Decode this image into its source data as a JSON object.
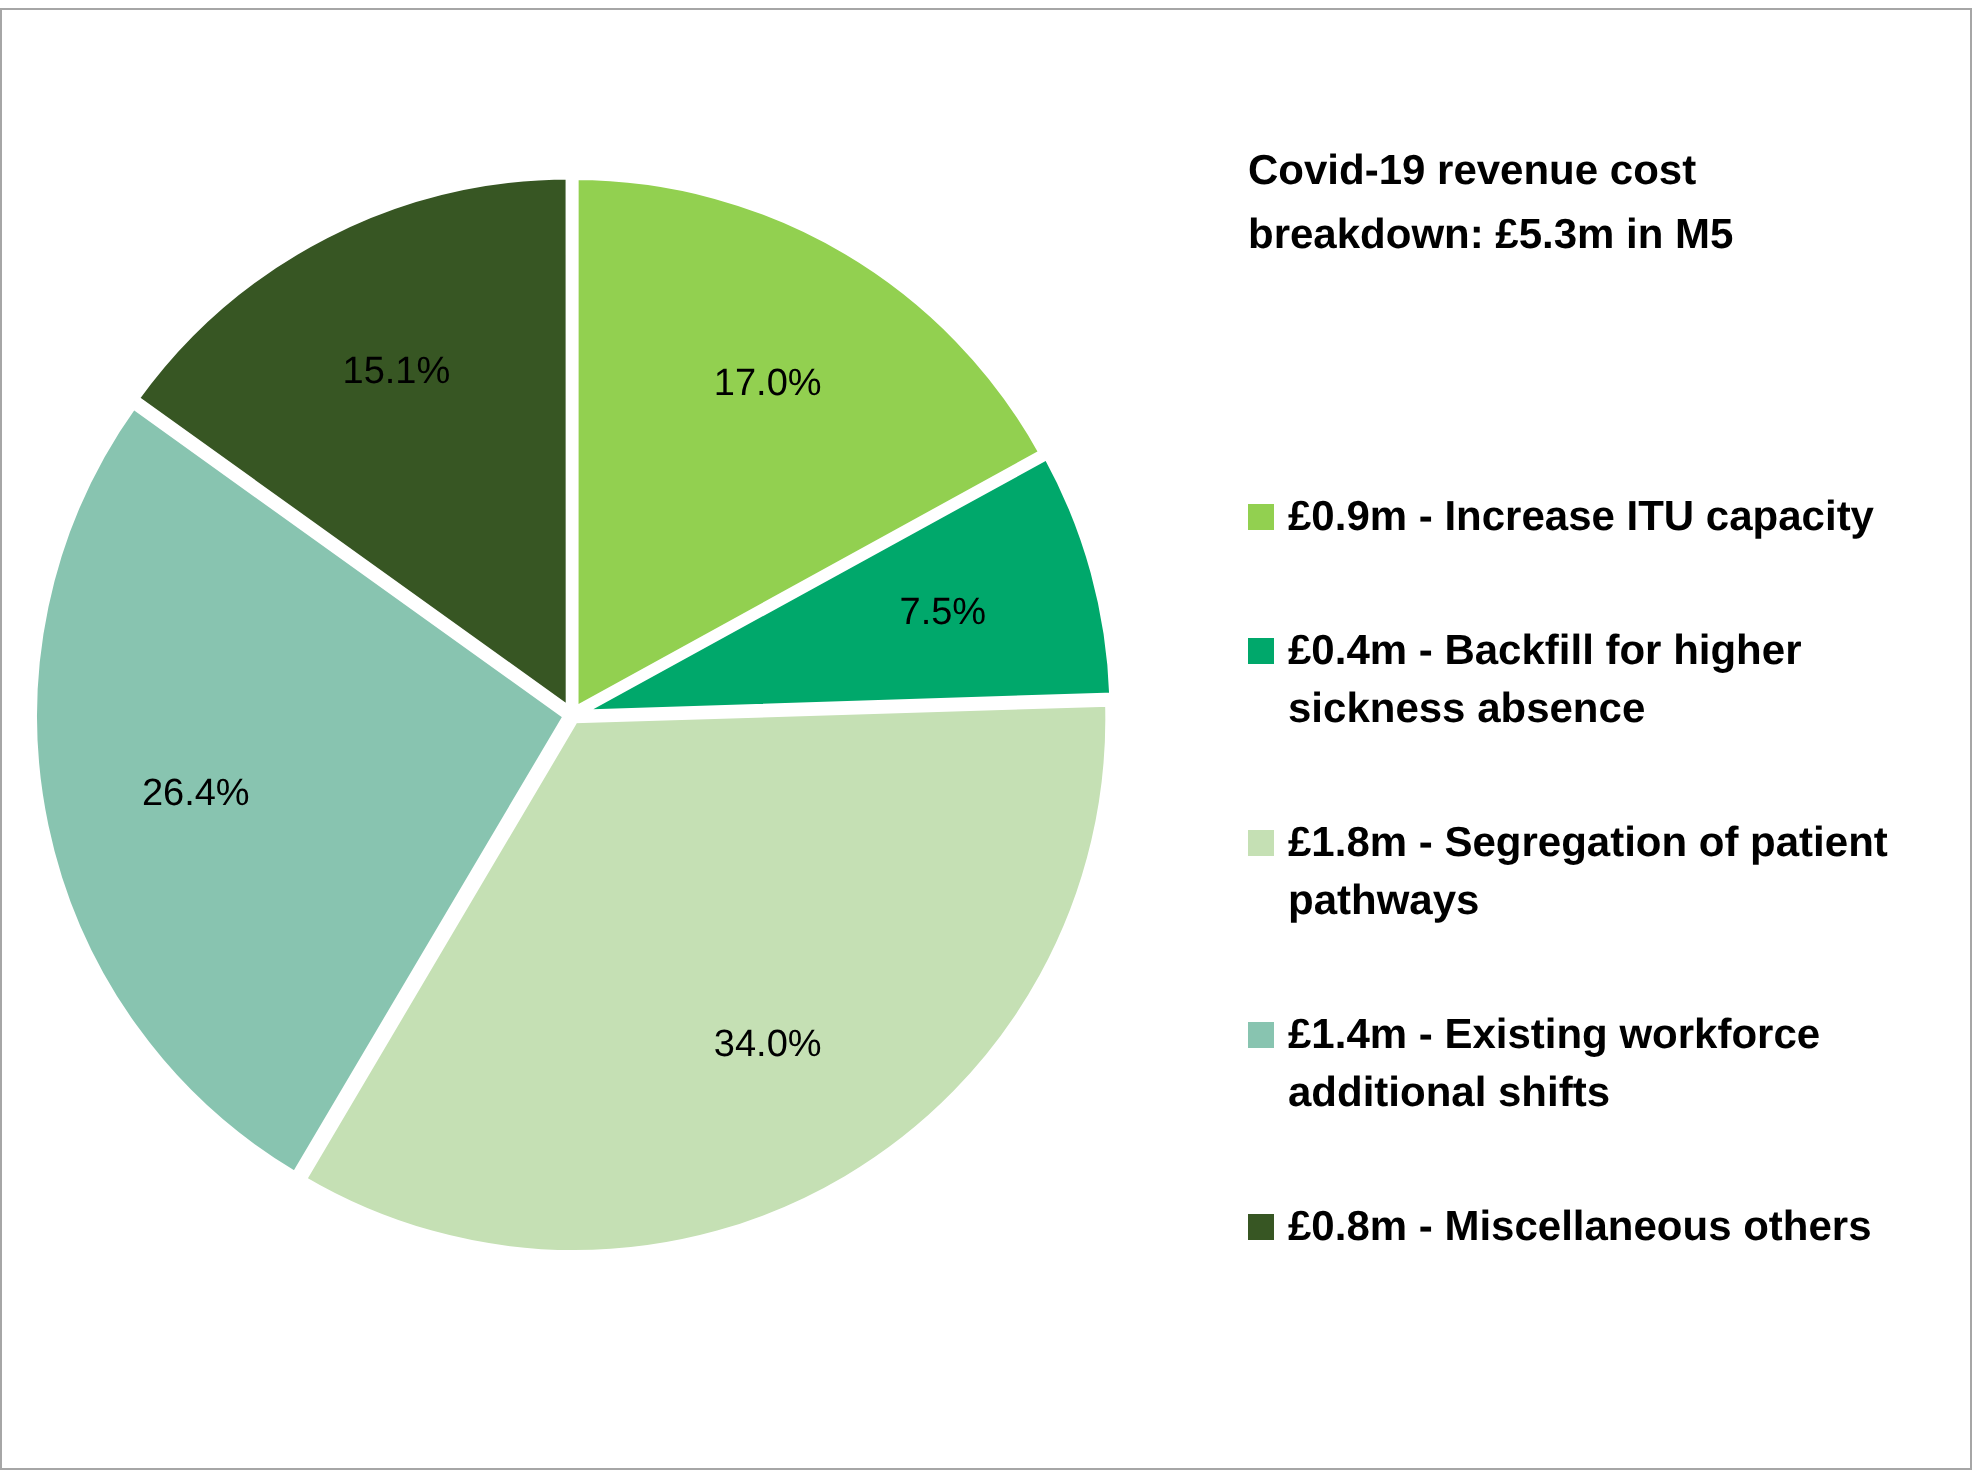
{
  "chart_data": {
    "type": "pie",
    "title": "Covid-19 revenue cost breakdown: £5.3m in M5",
    "categories": [
      "£0.9m - Increase ITU capacity",
      "£0.4m - Backfill for higher sickness absence",
      "£1.8m - Segregation of patient pathways",
      "£1.4m - Existing workforce additional shifts",
      "£0.8m - Miscellaneous others"
    ],
    "values": [
      17.0,
      7.5,
      34.0,
      26.4,
      15.1
    ],
    "value_labels": [
      "17.0%",
      "7.5%",
      "34.0%",
      "26.4%",
      "15.1%"
    ],
    "colors": [
      "#92d050",
      "#00a86b",
      "#c5e0b4",
      "#88c4b0",
      "#375623"
    ],
    "legend": "right"
  }
}
